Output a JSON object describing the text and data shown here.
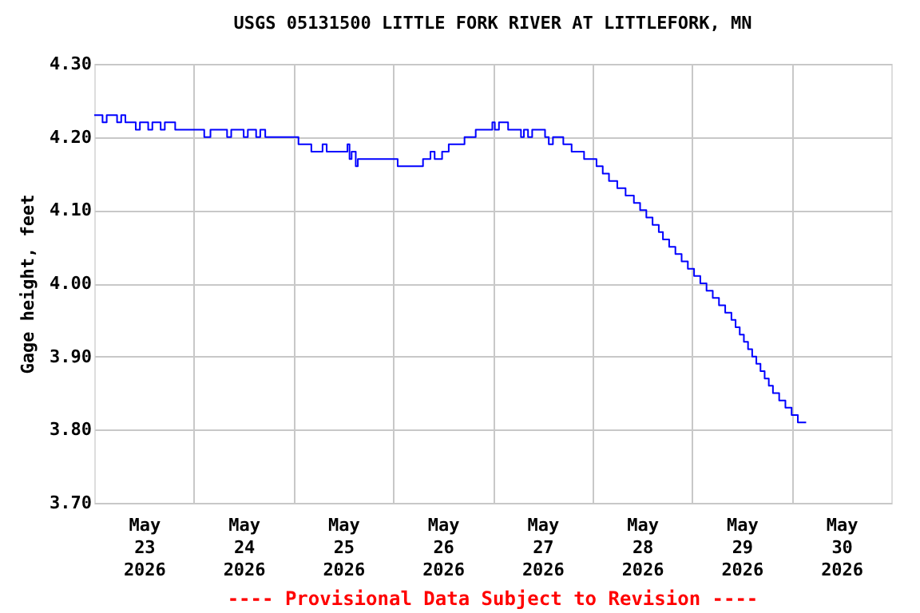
{
  "chart_data": {
    "type": "step",
    "title": "USGS 05131500 LITTLE FORK RIVER AT LITTLEFORK, MN",
    "ylabel": "Gage height, feet",
    "annotations": [
      "---- Provisional Data Subject to Revision ----"
    ],
    "grid": true,
    "line_style": "solid",
    "marker": "none",
    "xlim": [
      "2026-05-23T00:00",
      "2026-05-31T00:00"
    ],
    "xticks": [
      {
        "value": "2026-05-23T12:00",
        "label": "May\n23\n2026"
      },
      {
        "value": "2026-05-24T00:00",
        "label": null
      },
      {
        "value": "2026-05-24T12:00",
        "label": "May\n24\n2026"
      },
      {
        "value": "2026-05-25T00:00",
        "label": null
      },
      {
        "value": "2026-05-25T12:00",
        "label": "May\n25\n2026"
      },
      {
        "value": "2026-05-26T00:00",
        "label": null
      },
      {
        "value": "2026-05-26T12:00",
        "label": "May\n26\n2026"
      },
      {
        "value": "2026-05-27T00:00",
        "label": null
      },
      {
        "value": "2026-05-27T12:00",
        "label": "May\n27\n2026"
      },
      {
        "value": "2026-05-28T00:00",
        "label": null
      },
      {
        "value": "2026-05-28T12:00",
        "label": "May\n28\n2026"
      },
      {
        "value": "2026-05-29T00:00",
        "label": null
      },
      {
        "value": "2026-05-29T12:00",
        "label": "May\n29\n2026"
      },
      {
        "value": "2026-05-30T00:00",
        "label": null
      },
      {
        "value": "2026-05-30T12:00",
        "label": "May\n30\n2026"
      }
    ],
    "ylim": [
      3.7,
      4.3
    ],
    "yticks": [
      {
        "value": 3.7,
        "label": "3.70"
      },
      {
        "value": 3.8,
        "label": "3.80"
      },
      {
        "value": 3.9,
        "label": "3.90"
      },
      {
        "value": 4.0,
        "label": "4.00"
      },
      {
        "value": 4.1,
        "label": "4.10"
      },
      {
        "value": 4.2,
        "label": "4.20"
      },
      {
        "value": 4.3,
        "label": "4.30"
      }
    ],
    "x": [
      "2026-05-23T00:00",
      "2026-05-23T02:00",
      "2026-05-23T03:00",
      "2026-05-23T05:30",
      "2026-05-23T06:30",
      "2026-05-23T07:30",
      "2026-05-23T10:00",
      "2026-05-23T11:00",
      "2026-05-23T13:00",
      "2026-05-23T14:00",
      "2026-05-23T16:00",
      "2026-05-23T17:00",
      "2026-05-23T19:30",
      "2026-05-24T02:30",
      "2026-05-24T04:00",
      "2026-05-24T08:00",
      "2026-05-24T09:00",
      "2026-05-24T12:00",
      "2026-05-24T13:00",
      "2026-05-24T15:00",
      "2026-05-24T16:00",
      "2026-05-24T17:12",
      "2026-05-25T01:12",
      "2026-05-25T04:18",
      "2026-05-25T07:00",
      "2026-05-25T08:00",
      "2026-05-25T13:00",
      "2026-05-25T13:30",
      "2026-05-25T14:00",
      "2026-05-25T15:00",
      "2026-05-25T15:30",
      "2026-05-25T17:00",
      "2026-05-26T01:06",
      "2026-05-26T07:12",
      "2026-05-26T09:00",
      "2026-05-26T10:00",
      "2026-05-26T11:48",
      "2026-05-26T13:24",
      "2026-05-26T17:12",
      "2026-05-26T19:54",
      "2026-05-26T23:54",
      "2026-05-27T00:30",
      "2026-05-27T01:30",
      "2026-05-27T03:42",
      "2026-05-27T06:48",
      "2026-05-27T07:30",
      "2026-05-27T08:30",
      "2026-05-27T09:30",
      "2026-05-27T12:36",
      "2026-05-27T13:30",
      "2026-05-27T14:30",
      "2026-05-27T17:00",
      "2026-05-27T19:00",
      "2026-05-27T22:00",
      "2026-05-28T01:00",
      "2026-05-28T02:30",
      "2026-05-28T04:00",
      "2026-05-28T06:00",
      "2026-05-28T08:00",
      "2026-05-28T10:00",
      "2026-05-28T11:30",
      "2026-05-28T13:00",
      "2026-05-28T14:30",
      "2026-05-28T16:00",
      "2026-05-28T17:00",
      "2026-05-28T18:30",
      "2026-05-28T20:00",
      "2026-05-28T21:30",
      "2026-05-28T23:00",
      "2026-05-29T00:30",
      "2026-05-29T02:00",
      "2026-05-29T03:30",
      "2026-05-29T05:00",
      "2026-05-29T06:30",
      "2026-05-29T08:00",
      "2026-05-29T09:30",
      "2026-05-29T10:30",
      "2026-05-29T11:30",
      "2026-05-29T12:30",
      "2026-05-29T13:30",
      "2026-05-29T14:30",
      "2026-05-29T15:30",
      "2026-05-29T16:30",
      "2026-05-29T17:30",
      "2026-05-29T18:30",
      "2026-05-29T19:30",
      "2026-05-29T21:00",
      "2026-05-29T22:30",
      "2026-05-30T00:00",
      "2026-05-30T01:30",
      "2026-05-30T03:30"
    ],
    "series": [
      {
        "color": "#0000ff",
        "values": [
          4.23,
          4.22,
          4.23,
          4.22,
          4.23,
          4.22,
          4.21,
          4.22,
          4.21,
          4.22,
          4.21,
          4.22,
          4.21,
          4.2,
          4.21,
          4.2,
          4.21,
          4.2,
          4.21,
          4.2,
          4.21,
          4.2,
          4.19,
          4.18,
          4.19,
          4.18,
          4.19,
          4.17,
          4.18,
          4.16,
          4.17,
          4.17,
          4.16,
          4.17,
          4.18,
          4.17,
          4.18,
          4.19,
          4.2,
          4.21,
          4.22,
          4.21,
          4.22,
          4.21,
          4.2,
          4.21,
          4.2,
          4.21,
          4.2,
          4.19,
          4.2,
          4.19,
          4.18,
          4.17,
          4.16,
          4.15,
          4.14,
          4.13,
          4.12,
          4.11,
          4.1,
          4.09,
          4.08,
          4.07,
          4.06,
          4.05,
          4.04,
          4.03,
          4.02,
          4.01,
          4.0,
          3.99,
          3.98,
          3.97,
          3.96,
          3.95,
          3.94,
          3.93,
          3.92,
          3.91,
          3.9,
          3.89,
          3.88,
          3.87,
          3.86,
          3.85,
          3.84,
          3.83,
          3.82,
          3.81,
          3.81
        ]
      }
    ]
  }
}
